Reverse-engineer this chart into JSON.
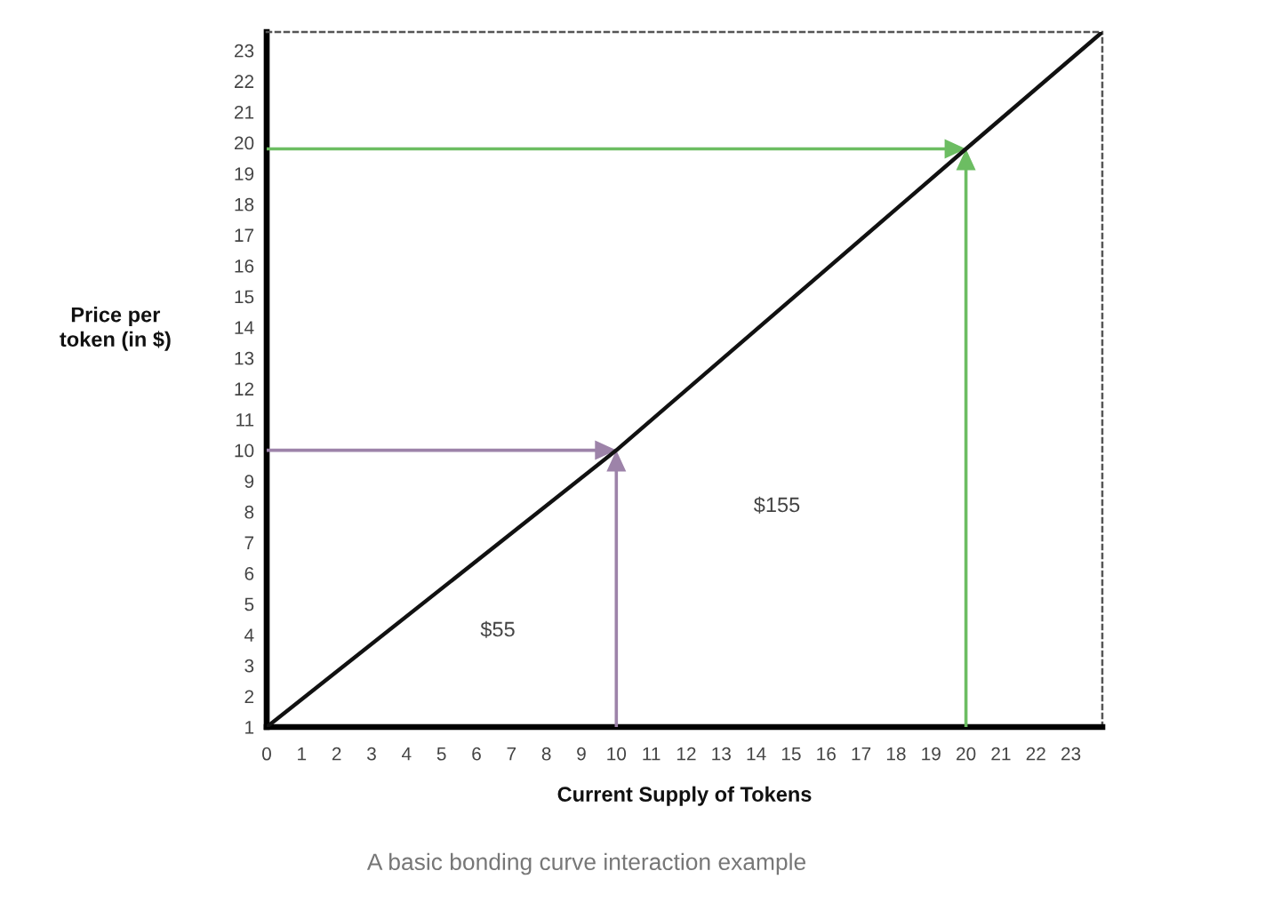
{
  "chart_data": {
    "type": "line",
    "xlabel": "Current Supply of Tokens",
    "ylabel": "Price per\ntoken (in $)",
    "xlim": [
      0,
      23.9
    ],
    "ylim": [
      1,
      23.6
    ],
    "xticks": [
      0,
      1,
      2,
      3,
      4,
      5,
      6,
      7,
      8,
      9,
      10,
      11,
      12,
      13,
      14,
      15,
      16,
      17,
      18,
      19,
      20,
      21,
      22,
      23
    ],
    "yticks": [
      1,
      2,
      3,
      4,
      5,
      6,
      7,
      8,
      9,
      10,
      11,
      12,
      13,
      14,
      15,
      16,
      17,
      18,
      19,
      20,
      21,
      22,
      23
    ],
    "series": [
      {
        "color": "#111111",
        "x": [
          0,
          10,
          20,
          23.9
        ],
        "values": [
          1,
          10,
          19.8,
          23.6
        ]
      }
    ],
    "annotations": [
      "$55",
      "$155",
      "A basic bonding curve interaction example"
    ]
  }
}
